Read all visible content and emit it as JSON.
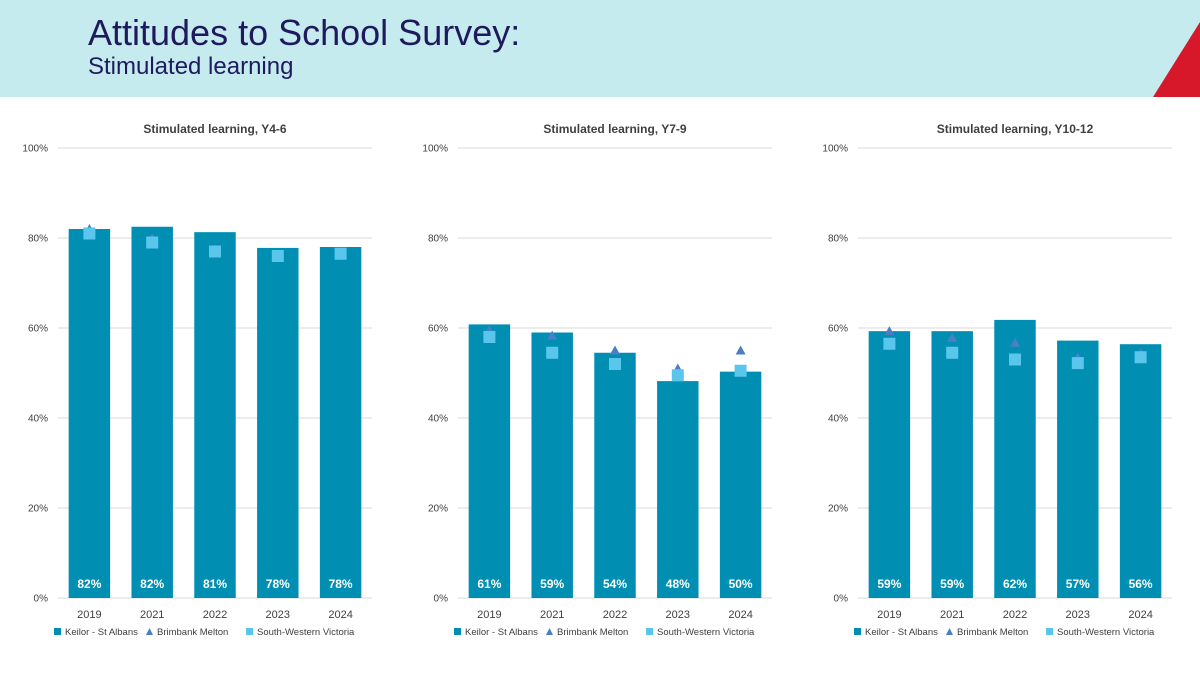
{
  "header": {
    "title": "Attitudes to School Survey:",
    "subtitle": "Stimulated learning",
    "colors": {
      "banner": "#c5ebee",
      "accent": "#d7182a",
      "title": "#1f1a5e"
    }
  },
  "colors": {
    "bar": "#008fb3",
    "triangle": "#4a7fc8",
    "square": "#5bc6ec",
    "grid": "#d9d9d9",
    "text": "#404040"
  },
  "chart_data": [
    {
      "type": "bar",
      "title": "Stimulated learning, Y4-6",
      "categories": [
        "2019",
        "2021",
        "2022",
        "2023",
        "2024"
      ],
      "yticks": [
        "0%",
        "20%",
        "40%",
        "60%",
        "80%",
        "100%"
      ],
      "ylim": [
        0,
        100
      ],
      "legend_position": "bottom",
      "series": [
        {
          "name": "Keilor - St Albans",
          "kind": "bar",
          "values": [
            82,
            82.5,
            81.3,
            77.8,
            78
          ],
          "labels": [
            "82%",
            "82%",
            "81%",
            "78%",
            "78%"
          ]
        },
        {
          "name": "Brimbank Melton",
          "kind": "triangle",
          "values": [
            82,
            80,
            77.5,
            76,
            77
          ]
        },
        {
          "name": "South-Western Victoria",
          "kind": "square",
          "values": [
            81,
            79,
            77,
            76,
            76.5
          ]
        }
      ]
    },
    {
      "type": "bar",
      "title": "Stimulated learning, Y7-9",
      "categories": [
        "2019",
        "2021",
        "2022",
        "2023",
        "2024"
      ],
      "yticks": [
        "0%",
        "20%",
        "40%",
        "60%",
        "80%",
        "100%"
      ],
      "ylim": [
        0,
        100
      ],
      "legend_position": "bottom",
      "series": [
        {
          "name": "Keilor - St Albans",
          "kind": "bar",
          "values": [
            60.8,
            59,
            54.5,
            48.2,
            50.3
          ],
          "labels": [
            "61%",
            "59%",
            "54%",
            "48%",
            "50%"
          ]
        },
        {
          "name": "Brimbank Melton",
          "kind": "triangle",
          "values": [
            59.5,
            58.3,
            55,
            51,
            55
          ]
        },
        {
          "name": "South-Western Victoria",
          "kind": "square",
          "values": [
            58,
            54.5,
            52,
            49.5,
            50.5
          ]
        }
      ]
    },
    {
      "type": "bar",
      "title": "Stimulated learning, Y10-12",
      "categories": [
        "2019",
        "2021",
        "2022",
        "2023",
        "2024"
      ],
      "yticks": [
        "0%",
        "20%",
        "40%",
        "60%",
        "80%",
        "100%"
      ],
      "ylim": [
        0,
        100
      ],
      "legend_position": "bottom",
      "series": [
        {
          "name": "Keilor - St Albans",
          "kind": "bar",
          "values": [
            59.3,
            59.3,
            61.8,
            57.2,
            56.4
          ],
          "labels": [
            "59%",
            "59%",
            "62%",
            "57%",
            "56%"
          ]
        },
        {
          "name": "Brimbank Melton",
          "kind": "triangle",
          "values": [
            59.3,
            57.8,
            56.7,
            53.5,
            54.5
          ]
        },
        {
          "name": "South-Western Victoria",
          "kind": "square",
          "values": [
            56.5,
            54.5,
            53,
            52.2,
            53.5
          ]
        }
      ]
    }
  ]
}
